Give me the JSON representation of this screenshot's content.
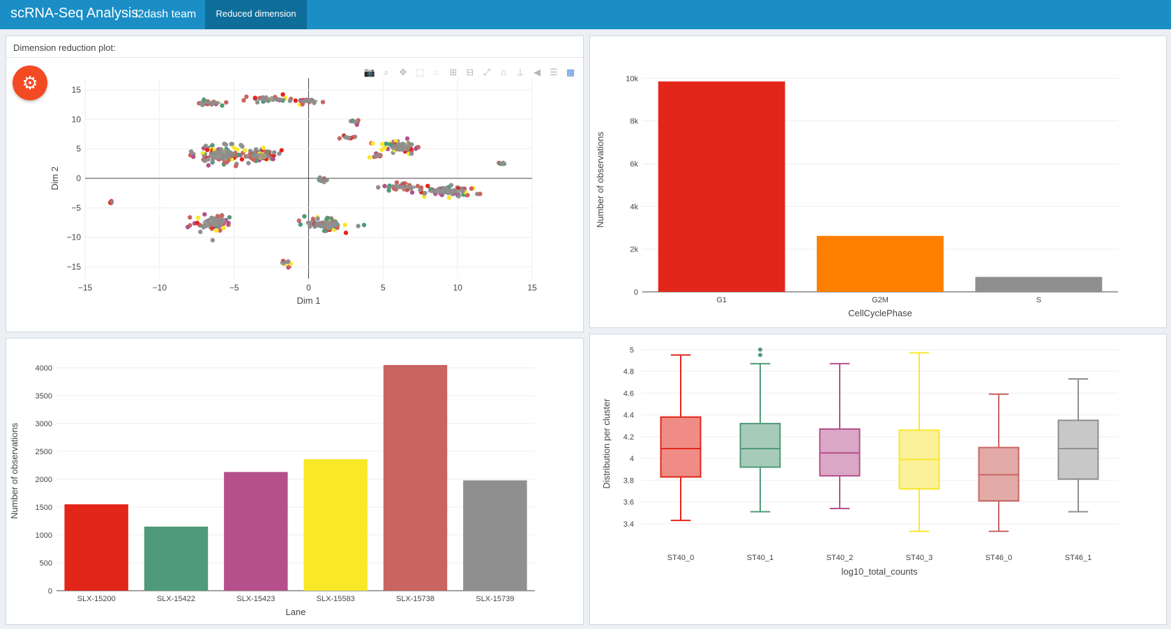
{
  "header": {
    "brand": "scRNA-Seq Analysis",
    "team": "i2dash team",
    "tab_label": "Reduced dimension"
  },
  "dim_plot": {
    "title": "Dimension reduction plot:",
    "modebar_icons": [
      "camera-icon",
      "zoom-icon",
      "pan-icon",
      "box-select-icon",
      "lasso-icon",
      "zoom-in-icon",
      "zoom-out-icon",
      "autoscale-icon",
      "reset-axes-icon",
      "spike-lines-icon",
      "hover-closest-icon",
      "hover-compare-icon",
      "plotly-logo-icon"
    ],
    "colors": {
      "red": "#e3261a",
      "green": "#4f9a78",
      "purple": "#b5508c",
      "yellow": "#f8e828",
      "salmon": "#c96560",
      "gray": "#8f8f8f"
    }
  },
  "chart_data": [
    {
      "type": "scatter",
      "xlabel": "Dim 1",
      "ylabel": "Dim 2",
      "xlim": [
        -15,
        15
      ],
      "ylim": [
        -17,
        17
      ],
      "xticks": [
        "−15",
        "−10",
        "−5",
        "0",
        "5",
        "10",
        "15"
      ],
      "yticks": [
        "15",
        "10",
        "5",
        "0",
        "−5",
        "−10",
        "−15"
      ],
      "xtick_values": [
        -15,
        -10,
        -5,
        0,
        5,
        10,
        15
      ],
      "ytick_values": [
        15,
        10,
        5,
        0,
        -5,
        -10,
        -15
      ],
      "clusters": [
        {
          "x": -5.8,
          "y": 4.0,
          "spread": [
            1.6,
            1.6
          ],
          "n": 120
        },
        {
          "x": -3.2,
          "y": 3.8,
          "spread": [
            1.2,
            0.9
          ],
          "n": 60
        },
        {
          "x": -6.4,
          "y": -7.5,
          "spread": [
            1.3,
            1.4
          ],
          "n": 70
        },
        {
          "x": 1.2,
          "y": -7.8,
          "spread": [
            1.6,
            1.2
          ],
          "n": 70
        },
        {
          "x": 6.2,
          "y": 5.3,
          "spread": [
            1.2,
            1.4
          ],
          "n": 55
        },
        {
          "x": 9.2,
          "y": -2.2,
          "spread": [
            2.2,
            0.9
          ],
          "n": 55
        },
        {
          "x": 6.5,
          "y": -1.5,
          "spread": [
            1.4,
            0.7
          ],
          "n": 35
        },
        {
          "x": -2.5,
          "y": 13.4,
          "spread": [
            1.8,
            0.5
          ],
          "n": 28
        },
        {
          "x": -6.4,
          "y": 12.8,
          "spread": [
            0.9,
            0.4
          ],
          "n": 18
        },
        {
          "x": 0.0,
          "y": 13.1,
          "spread": [
            1.1,
            0.5
          ],
          "n": 15
        },
        {
          "x": 3.1,
          "y": 9.6,
          "spread": [
            0.4,
            0.4
          ],
          "n": 8
        },
        {
          "x": 2.6,
          "y": 6.9,
          "spread": [
            0.5,
            0.3
          ],
          "n": 8
        },
        {
          "x": 4.6,
          "y": 3.8,
          "spread": [
            0.5,
            0.4
          ],
          "n": 10
        },
        {
          "x": 13.0,
          "y": 2.5,
          "spread": [
            0.3,
            0.3
          ],
          "n": 5
        },
        {
          "x": 0.9,
          "y": -0.3,
          "spread": [
            0.6,
            0.3
          ],
          "n": 10
        },
        {
          "x": -13.2,
          "y": -4.0,
          "spread": [
            0.2,
            0.2
          ],
          "n": 4
        },
        {
          "x": -1.7,
          "y": -14.3,
          "spread": [
            0.4,
            0.8
          ],
          "n": 8
        }
      ]
    },
    {
      "type": "bar",
      "xlabel": "CellCyclePhase",
      "ylabel": "Number of observations",
      "categories": [
        "G1",
        "G2M",
        "S"
      ],
      "values": [
        9850,
        2620,
        700
      ],
      "colors": [
        "#e3261a",
        "#ff8000",
        "#8f8f8f"
      ],
      "ylim": [
        0,
        10500
      ],
      "yticks": [
        0,
        2000,
        4000,
        6000,
        8000,
        10000
      ],
      "ytick_labels": [
        "0",
        "2k",
        "4k",
        "6k",
        "8k",
        "10k"
      ]
    },
    {
      "type": "bar",
      "xlabel": "Lane",
      "ylabel": "Number of observations",
      "categories": [
        "SLX-15200",
        "SLX-15422",
        "SLX-15423",
        "SLX-15583",
        "SLX-15738",
        "SLX-15739"
      ],
      "values": [
        1550,
        1150,
        2130,
        2360,
        4050,
        1980
      ],
      "colors": [
        "#e3261a",
        "#4f9a78",
        "#b5508c",
        "#f8e828",
        "#c96560",
        "#8f8f8f"
      ],
      "ylim": [
        0,
        4300
      ],
      "yticks": [
        0,
        500,
        1000,
        1500,
        2000,
        2500,
        3000,
        3500,
        4000
      ],
      "ytick_labels": [
        "0",
        "500",
        "1000",
        "1500",
        "2000",
        "2500",
        "3000",
        "3500",
        "4000"
      ]
    },
    {
      "type": "box",
      "xlabel": "log10_total_counts",
      "ylabel": "Distribution per cluster",
      "categories": [
        "ST40_0",
        "ST40_1",
        "ST40_2",
        "ST40_3",
        "ST46_0",
        "ST46_1"
      ],
      "colors": [
        "#e3261a",
        "#4f9a78",
        "#b5508c",
        "#f8e828",
        "#c96560",
        "#8f8f8f"
      ],
      "fills": [
        "#f08c86",
        "#a6cbb9",
        "#dba7c6",
        "#fbf19a",
        "#e2aaa7",
        "#c8c8c8"
      ],
      "boxes": [
        {
          "min": 3.43,
          "q1": 3.83,
          "median": 4.09,
          "q3": 4.38,
          "max": 4.95,
          "outliers": []
        },
        {
          "min": 3.51,
          "q1": 3.92,
          "median": 4.09,
          "q3": 4.32,
          "max": 4.87,
          "outliers": [
            4.95,
            5.0
          ]
        },
        {
          "min": 3.54,
          "q1": 3.84,
          "median": 4.05,
          "q3": 4.27,
          "max": 4.87,
          "outliers": []
        },
        {
          "min": 3.33,
          "q1": 3.72,
          "median": 3.99,
          "q3": 4.26,
          "max": 4.97,
          "outliers": []
        },
        {
          "min": 3.33,
          "q1": 3.61,
          "median": 3.85,
          "q3": 4.1,
          "max": 4.59,
          "outliers": []
        },
        {
          "min": 3.51,
          "q1": 3.81,
          "median": 4.09,
          "q3": 4.35,
          "max": 4.73,
          "outliers": []
        }
      ],
      "ylim": [
        3.22,
        5.05
      ],
      "yticks": [
        3.4,
        3.6,
        3.8,
        4.0,
        4.2,
        4.4,
        4.6,
        4.8,
        5.0
      ],
      "ytick_labels": [
        "3.4",
        "3.6",
        "3.8",
        "4",
        "4.2",
        "4.4",
        "4.6",
        "4.8",
        "5"
      ]
    }
  ]
}
